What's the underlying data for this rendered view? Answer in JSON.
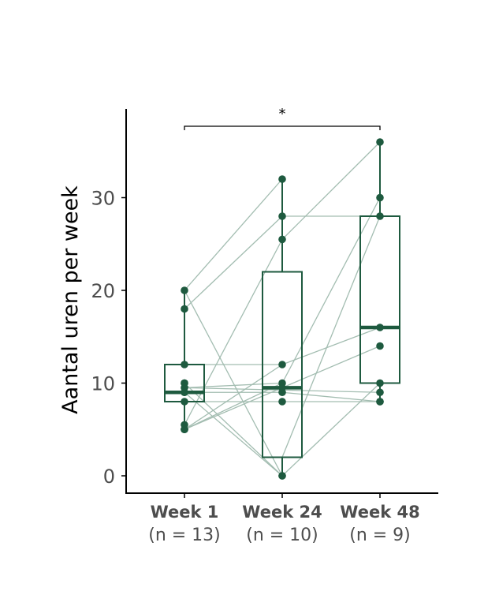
{
  "chart_data": {
    "type": "box",
    "title": "",
    "xlabel": "",
    "ylabel": "Aantal uren per week",
    "ylim": [
      -1.8,
      39.5
    ],
    "yticks": [
      0,
      10,
      20,
      30
    ],
    "grid": false,
    "categories": [
      {
        "label": "Week 1",
        "n_label": "(n = 13)"
      },
      {
        "label": "Week 24",
        "n_label": "(n = 10)"
      },
      {
        "label": "Week 48",
        "n_label": "(n = 9)"
      }
    ],
    "boxes": [
      {
        "q1": 8,
        "median": 9,
        "q3": 12,
        "whisker_low": 5,
        "whisker_high": 20
      },
      {
        "q1": 2,
        "median": 9.5,
        "q3": 22,
        "whisker_low": 0,
        "whisker_high": 32
      },
      {
        "q1": 10,
        "median": 16,
        "q3": 28,
        "whisker_low": 8,
        "whisker_high": 36
      }
    ],
    "points": [
      [
        20,
        18,
        12,
        10,
        10,
        9.5,
        9,
        9,
        8,
        5.5,
        5,
        5,
        5
      ],
      [
        32,
        28,
        25.5,
        12,
        10,
        9.5,
        9,
        8,
        0,
        0
      ],
      [
        36,
        30,
        28,
        16,
        14,
        10,
        9,
        8,
        8
      ]
    ],
    "paired_lines": [
      {
        "from": [
          0,
          20
        ],
        "to": [
          1,
          32
        ]
      },
      {
        "from": [
          0,
          18
        ],
        "to": [
          1,
          28
        ]
      },
      {
        "from": [
          0,
          20
        ],
        "to": [
          1,
          0
        ]
      },
      {
        "from": [
          0,
          12
        ],
        "to": [
          1,
          12
        ]
      },
      {
        "from": [
          0,
          10
        ],
        "to": [
          1,
          0
        ]
      },
      {
        "from": [
          0,
          9.5
        ],
        "to": [
          1,
          10
        ]
      },
      {
        "from": [
          0,
          9
        ],
        "to": [
          1,
          9
        ]
      },
      {
        "from": [
          0,
          8
        ],
        "to": [
          1,
          8
        ]
      },
      {
        "from": [
          0,
          5.5
        ],
        "to": [
          1,
          25.5
        ]
      },
      {
        "from": [
          0,
          5
        ],
        "to": [
          1,
          9.5
        ]
      },
      {
        "from": [
          0,
          5
        ],
        "to": [
          1,
          10
        ]
      },
      {
        "from": [
          0,
          5
        ],
        "to": [
          1,
          12
        ]
      },
      {
        "from": [
          0,
          9
        ],
        "to": [
          1,
          0
        ]
      },
      {
        "from": [
          1,
          25.5
        ],
        "to": [
          2,
          36
        ]
      },
      {
        "from": [
          1,
          28
        ],
        "to": [
          2,
          28
        ]
      },
      {
        "from": [
          1,
          12
        ],
        "to": [
          2,
          16
        ]
      },
      {
        "from": [
          1,
          9.5
        ],
        "to": [
          2,
          14
        ]
      },
      {
        "from": [
          1,
          9
        ],
        "to": [
          2,
          8
        ]
      },
      {
        "from": [
          1,
          8
        ],
        "to": [
          2,
          8
        ]
      },
      {
        "from": [
          1,
          0
        ],
        "to": [
          2,
          10
        ]
      },
      {
        "from": [
          1,
          10
        ],
        "to": [
          2,
          30
        ]
      },
      {
        "from": [
          1,
          2
        ],
        "to": [
          2,
          28
        ]
      },
      {
        "from": [
          0,
          9.5
        ],
        "to": [
          2,
          9
        ]
      }
    ],
    "significance": {
      "from": 0,
      "to": 2,
      "label": "*",
      "y": 37.8
    },
    "colors": {
      "box": "#1e5a3f",
      "point": "#1e5a3f",
      "line": "#a3bdb1",
      "axis": "#000000"
    }
  }
}
